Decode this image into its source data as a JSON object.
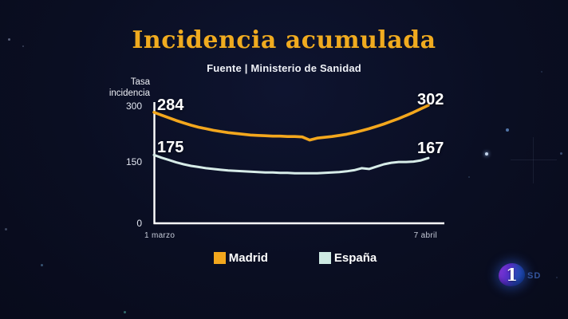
{
  "header": {
    "title": "Incidencia acumulada",
    "source": "Fuente | Ministerio de Sanidad"
  },
  "axis": {
    "y_title_line1": "Tasa",
    "y_title_line2": "incidencia",
    "y_ticks": [
      "300",
      "150",
      "0"
    ],
    "x_left": "1 marzo",
    "x_right": "7 abril"
  },
  "legend": [
    {
      "label": "Madrid",
      "color": "#f3a71d"
    },
    {
      "label": "España",
      "color": "#cde9e2"
    }
  ],
  "logo": {
    "channel_number": "1",
    "badge": "SD"
  },
  "colors": {
    "background": "#0a0e22",
    "title": "#f0ab1f",
    "madrid_line": "#f3a71d",
    "espana_line": "#d7ece8",
    "axis_line": "#ffffff",
    "value_labels": "#ffffff",
    "sd_badge": "#33549b"
  },
  "chart_data": {
    "type": "line",
    "title": "Incidencia acumulada",
    "subtitle": "Fuente | Ministerio de Sanidad",
    "ylabel": "Tasa incidencia",
    "xlabel": "",
    "ylim": [
      0,
      300
    ],
    "y_ticks": [
      300,
      150,
      0
    ],
    "x_range_labels": [
      "1 marzo",
      "7 abril"
    ],
    "grid": false,
    "legend_position": "bottom",
    "series": [
      {
        "name": "Madrid",
        "color": "#f3a71d",
        "values": [
          284,
          277,
          270,
          263,
          257,
          251,
          246,
          242,
          238,
          235,
          232,
          230,
          228,
          226,
          225,
          224,
          223,
          223,
          222,
          222,
          221,
          213,
          218,
          220,
          222,
          225,
          228,
          232,
          237,
          242,
          248,
          254,
          261,
          268,
          276,
          284,
          293,
          302
        ]
      },
      {
        "name": "España",
        "color": "#d7ece8",
        "values": [
          175,
          168,
          162,
          156,
          151,
          147,
          144,
          141,
          139,
          137,
          135,
          134,
          133,
          132,
          131,
          130,
          130,
          129,
          129,
          128,
          128,
          128,
          128,
          129,
          130,
          131,
          133,
          136,
          141,
          139,
          145,
          151,
          155,
          157,
          157,
          158,
          161,
          167
        ]
      }
    ]
  }
}
